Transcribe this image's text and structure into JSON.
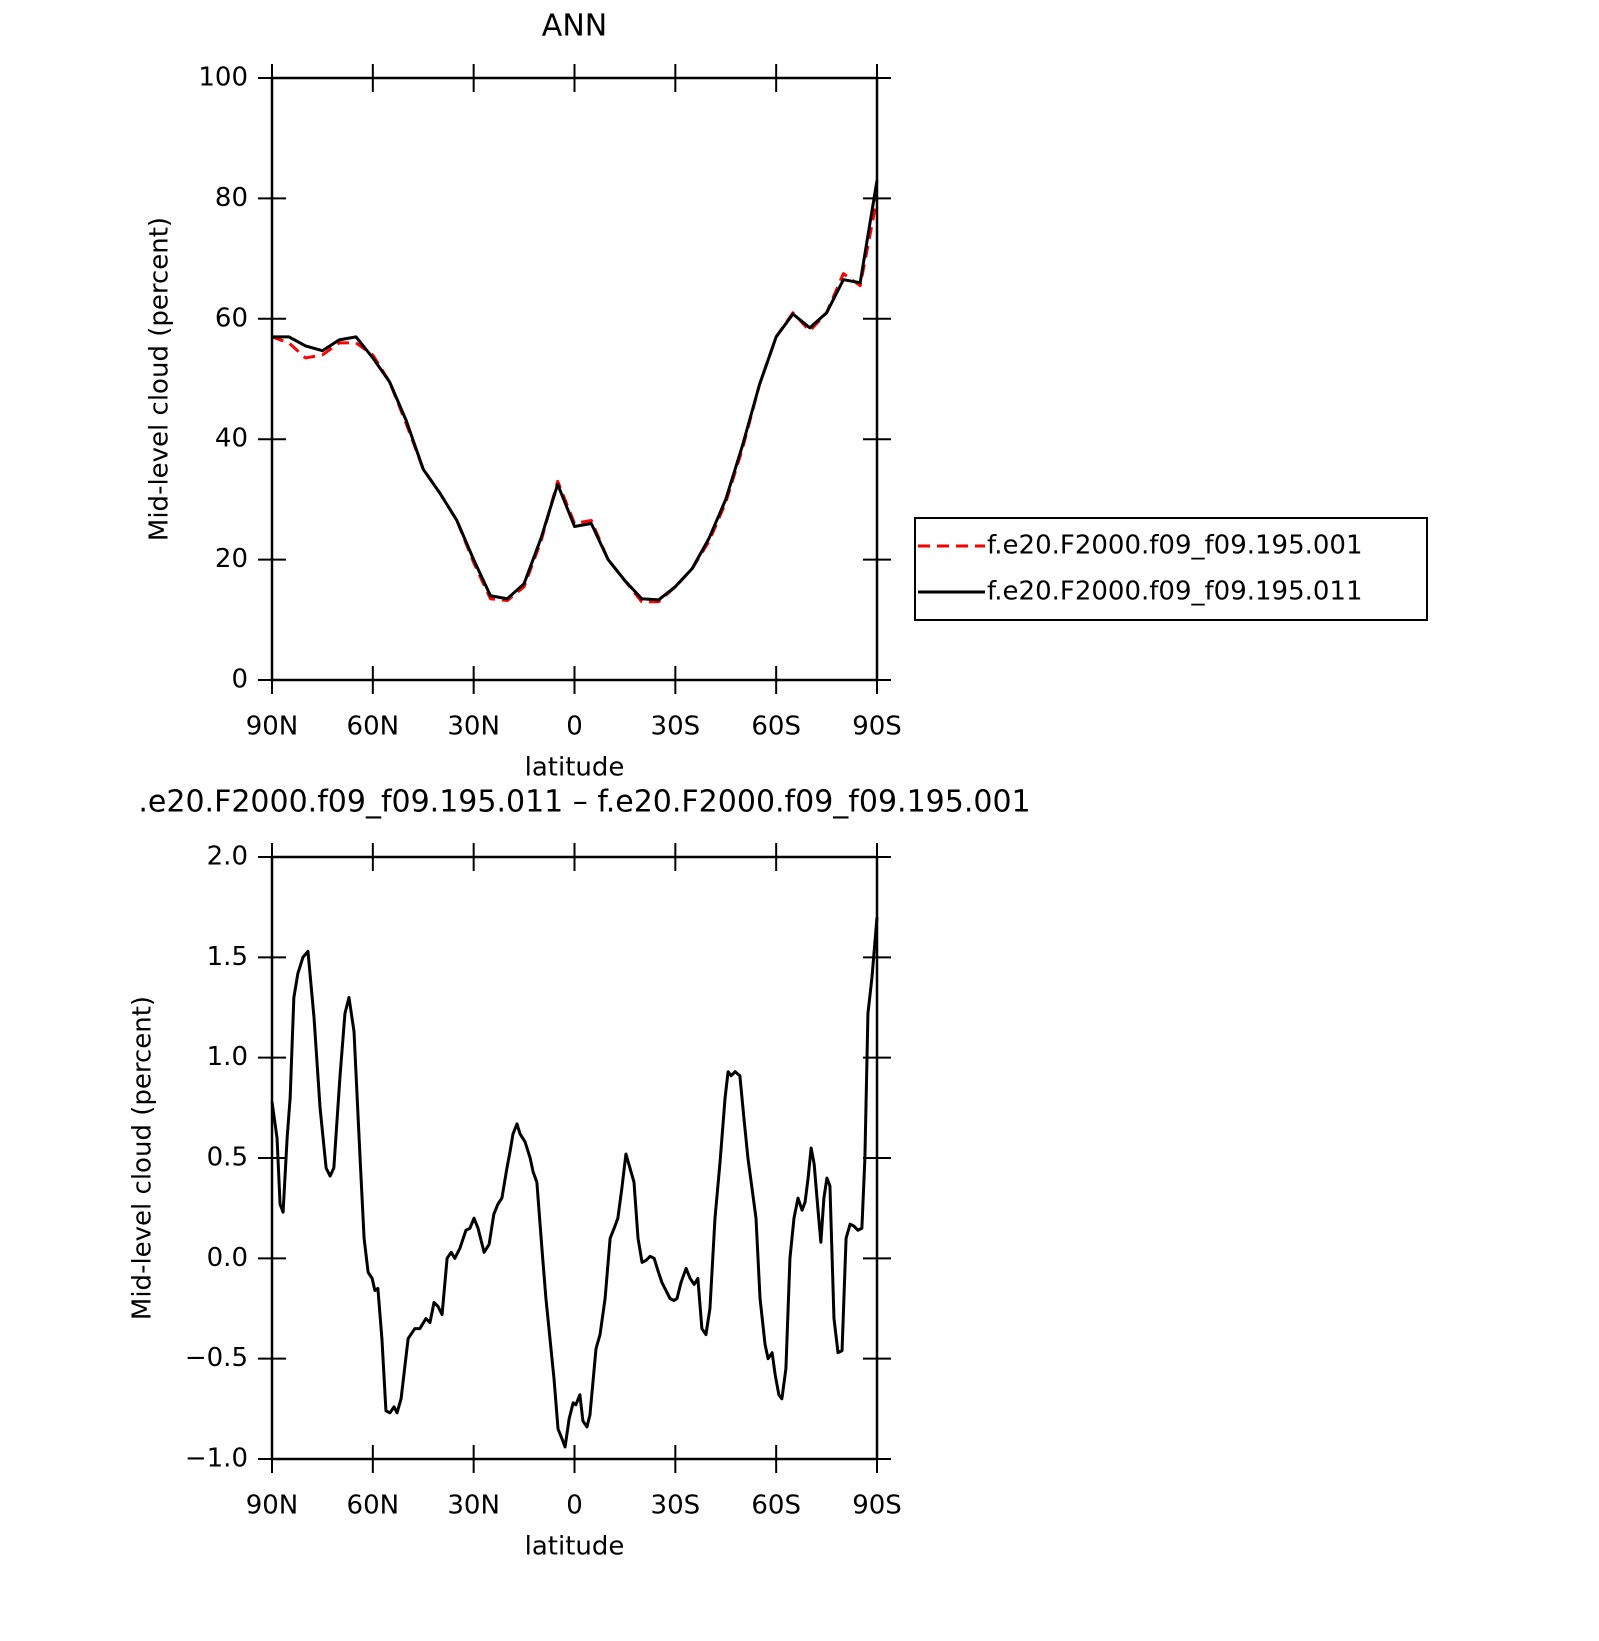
{
  "chart_data": [
    {
      "type": "line",
      "title": "ANN",
      "xlabel": "latitude",
      "ylabel": "Mid-level cloud (percent)",
      "x": [
        90,
        85,
        80,
        75,
        70,
        65,
        60,
        55,
        50,
        45,
        40,
        35,
        30,
        25,
        20,
        15,
        10,
        5,
        0,
        -5,
        -10,
        -15,
        -20,
        -25,
        -30,
        -35,
        -40,
        -45,
        -50,
        -55,
        -60,
        -65,
        -70,
        -75,
        -80,
        -85,
        -90
      ],
      "series": [
        {
          "name": "f.e20.F2000.f09_f09.195.001",
          "color": "#ff0000",
          "dashed": true,
          "values": [
            57,
            56,
            53.5,
            54,
            56,
            56,
            54,
            49.5,
            42.5,
            35,
            31,
            26.5,
            19.5,
            13.5,
            13.2,
            15.5,
            23,
            33,
            26,
            26.5,
            20,
            16.5,
            13,
            13,
            15.5,
            18.5,
            23,
            29.5,
            38.5,
            49,
            57,
            61,
            58,
            61,
            67.5,
            65.5,
            80
          ]
        },
        {
          "name": "f.e20.F2000.f09_f09.195.011",
          "color": "#000000",
          "dashed": false,
          "values": [
            57,
            57,
            55.5,
            54.7,
            56.5,
            57,
            53.5,
            49.5,
            43,
            35,
            31,
            26.5,
            20,
            14,
            13.5,
            16,
            23.5,
            32.5,
            25.5,
            26,
            20,
            16.5,
            13.5,
            13.3,
            15.5,
            18.5,
            23.5,
            30,
            39,
            49,
            57,
            60.8,
            58.5,
            61,
            66.5,
            66,
            83
          ]
        }
      ],
      "xlim": [
        90,
        -90
      ],
      "xticks": [
        {
          "value": 90,
          "label": "90N"
        },
        {
          "value": 60,
          "label": "60N"
        },
        {
          "value": 30,
          "label": "30N"
        },
        0,
        {
          "value": -30,
          "label": "30S"
        },
        {
          "value": -60,
          "label": "60S"
        },
        {
          "value": -90,
          "label": "90S"
        }
      ],
      "ylim": [
        0,
        100
      ],
      "yticks": [
        0,
        20,
        40,
        60,
        80,
        100
      ],
      "legend": "right"
    },
    {
      "type": "line",
      "title": ".e20.F2000.f09_f09.195.011 – f.e20.F2000.f09_f09.195.001",
      "xlabel": "latitude",
      "ylabel": "Mid-level cloud (percent)",
      "x": [
        90,
        88.5,
        87.6,
        86.7,
        85.5,
        84.6,
        83.5,
        82.3,
        80.8,
        79.3,
        77.5,
        75.7,
        73.9,
        72.7,
        71.6,
        69.8,
        68.3,
        67.1,
        65.6,
        63.8,
        62.6,
        61.4,
        60.2,
        59.4,
        58.5,
        57.3,
        56.1,
        54.9,
        53.7,
        52.8,
        51.6,
        49.5,
        47.5,
        46,
        44.2,
        43,
        41.8,
        40.6,
        39.4,
        37.9,
        36.7,
        35.6,
        34.1,
        32.3,
        31.1,
        29.9,
        28.7,
        26.9,
        25.4,
        24,
        22.8,
        21.6,
        20.1,
        19.2,
        18.3,
        17.1,
        16.2,
        14.7,
        13.2,
        12.3,
        11.2,
        9.7,
        8.5,
        7.6,
        6.1,
        4.9,
        3.7,
        2.8,
        1.6,
        0.4,
        -0.4,
        -1.6,
        -2.5,
        -3.7,
        -4.6,
        -6.4,
        -7.6,
        -9.1,
        -10.6,
        -11.8,
        -12.9,
        -14.1,
        -15.3,
        -16.5,
        -17.7,
        -18.9,
        -20.1,
        -21.3,
        -22.5,
        -23.7,
        -24.8,
        -26,
        -27.2,
        -28.4,
        -29.6,
        -30.5,
        -31.7,
        -33.2,
        -34.4,
        -35.6,
        -36.7,
        -37.9,
        -39.1,
        -40.3,
        -41.8,
        -43.3,
        -44.8,
        -45.7,
        -46.6,
        -47.8,
        -49.2,
        -50.4,
        -51.6,
        -52.8,
        -54,
        -55.2,
        -56.7,
        -57.6,
        -58.8,
        -59.7,
        -60.8,
        -61.7,
        -62.9,
        -64.1,
        -65.3,
        -66.5,
        -67.7,
        -68.6,
        -69.5,
        -70.4,
        -71.3,
        -72.4,
        -73.3,
        -74.2,
        -75.1,
        -76,
        -77.2,
        -78.4,
        -79.6,
        -80.8,
        -82,
        -83.2,
        -84.3,
        -85.5,
        -86.4,
        -87.3,
        -88.5,
        -90
      ],
      "series": [
        {
          "color": "#000000",
          "dashed": false,
          "values": [
            0.78,
            0.6,
            0.27,
            0.23,
            0.6,
            0.8,
            1.3,
            1.42,
            1.5,
            1.53,
            1.2,
            0.75,
            0.45,
            0.41,
            0.45,
            0.9,
            1.22,
            1.3,
            1.13,
            0.5,
            0.1,
            -0.07,
            -0.1,
            -0.16,
            -0.15,
            -0.4,
            -0.76,
            -0.77,
            -0.74,
            -0.77,
            -0.7,
            -0.4,
            -0.35,
            -0.35,
            -0.3,
            -0.32,
            -0.22,
            -0.24,
            -0.28,
            0,
            0.03,
            0,
            0.05,
            0.14,
            0.15,
            0.2,
            0.15,
            0.03,
            0.07,
            0.22,
            0.27,
            0.3,
            0.45,
            0.53,
            0.62,
            0.67,
            0.62,
            0.58,
            0.5,
            0.43,
            0.38,
            0.05,
            -0.2,
            -0.35,
            -0.6,
            -0.85,
            -0.9,
            -0.94,
            -0.8,
            -0.72,
            -0.73,
            -0.68,
            -0.81,
            -0.84,
            -0.78,
            -0.45,
            -0.38,
            -0.2,
            0.1,
            0.15,
            0.2,
            0.35,
            0.52,
            0.45,
            0.38,
            0.1,
            -0.02,
            -0.01,
            0.01,
            0,
            -0.06,
            -0.12,
            -0.16,
            -0.2,
            -0.21,
            -0.2,
            -0.12,
            -0.05,
            -0.1,
            -0.13,
            -0.1,
            -0.35,
            -0.38,
            -0.25,
            0.2,
            0.48,
            0.8,
            0.93,
            0.91,
            0.93,
            0.91,
            0.7,
            0.5,
            0.35,
            0.2,
            -0.2,
            -0.43,
            -0.5,
            -0.47,
            -0.58,
            -0.68,
            -0.7,
            -0.55,
            0,
            0.2,
            0.3,
            0.24,
            0.28,
            0.4,
            0.55,
            0.47,
            0.25,
            0.08,
            0.3,
            0.4,
            0.36,
            -0.3,
            -0.47,
            -0.46,
            0.1,
            0.17,
            0.16,
            0.14,
            0.15,
            0.5,
            1.22,
            1.4,
            1.7
          ]
        }
      ],
      "xlim": [
        90,
        -90
      ],
      "xticks": [
        {
          "value": 90,
          "label": "90N"
        },
        {
          "value": 60,
          "label": "60N"
        },
        {
          "value": 30,
          "label": "30N"
        },
        0,
        {
          "value": -30,
          "label": "30S"
        },
        {
          "value": -60,
          "label": "60S"
        },
        {
          "value": -90,
          "label": "90S"
        }
      ],
      "ylim": [
        -1,
        2
      ],
      "yticks": [
        {
          "value": -1,
          "label": "−1.0"
        },
        {
          "value": -0.5,
          "label": "−0.5"
        },
        {
          "value": 0,
          "label": "0.0"
        },
        {
          "value": 0.5,
          "label": "0.5"
        },
        {
          "value": 1,
          "label": "1.0"
        },
        {
          "value": 1.5,
          "label": "1.5"
        },
        {
          "value": 2,
          "label": "2.0"
        }
      ]
    }
  ]
}
